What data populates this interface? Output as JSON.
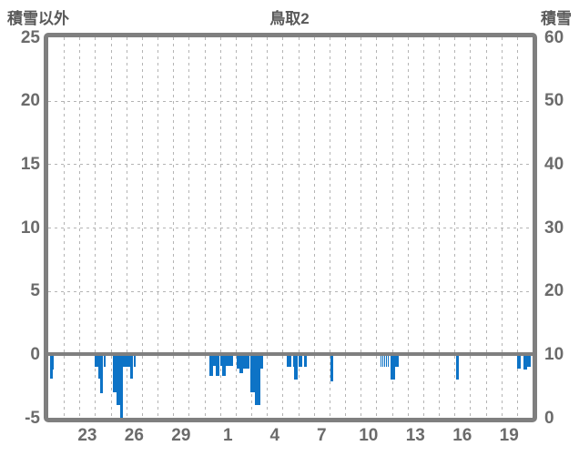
{
  "header": {
    "left_label": "積雪以外",
    "title": "鳥取2",
    "right_label": "積雪"
  },
  "chart_data": {
    "type": "bar",
    "title": "鳥取2",
    "bar_color": "#0d73c6",
    "frame_color": "#7f7f7f",
    "grid_color": "#b4b4b4",
    "label_color": "#6b6b6b",
    "grid": true,
    "left_axis": {
      "label": "積雪以外",
      "min": -5,
      "max": 25,
      "ticks": [
        "25",
        "20",
        "15",
        "10",
        "5",
        "0",
        "-5"
      ],
      "tick_values": [
        25,
        20,
        15,
        10,
        5,
        0,
        -5
      ]
    },
    "right_axis": {
      "label": "積雪",
      "min": 0,
      "max": 60,
      "ticks": [
        "60",
        "50",
        "40",
        "30",
        "20",
        "10",
        "0"
      ],
      "tick_values": [
        60,
        50,
        40,
        30,
        20,
        10,
        0
      ]
    },
    "x_axis": {
      "days_span": 31,
      "tick_labels": [
        {
          "label": "23",
          "day": 2.5
        },
        {
          "label": "26",
          "day": 5.5
        },
        {
          "label": "29",
          "day": 8.5
        },
        {
          "label": "1",
          "day": 11.5
        },
        {
          "label": "4",
          "day": 14.5
        },
        {
          "label": "7",
          "day": 17.5
        },
        {
          "label": "10",
          "day": 20.5
        },
        {
          "label": "13",
          "day": 23.5
        },
        {
          "label": "16",
          "day": 26.5
        },
        {
          "label": "19",
          "day": 29.5
        }
      ]
    },
    "bars": [
      {
        "d": 0.117,
        "w": 0.262,
        "v": -1.2
      },
      {
        "d": 0.117,
        "w": 0.146,
        "v": -1.9
      },
      {
        "d": 3.0,
        "w": 0.204,
        "v": -1.0
      },
      {
        "d": 3.205,
        "w": 0.146,
        "v": -1.9
      },
      {
        "d": 3.35,
        "w": 0.175,
        "v": -3.05
      },
      {
        "d": 3.526,
        "w": 0.117,
        "v": -1.0
      },
      {
        "d": 4.11,
        "w": 0.28,
        "v": -3.0
      },
      {
        "d": 4.39,
        "w": 0.216,
        "v": -4.0
      },
      {
        "d": 4.6,
        "w": 0.192,
        "v": -5.0
      },
      {
        "d": 4.8,
        "w": 0.449,
        "v": -1.0
      },
      {
        "d": 5.24,
        "w": 0.204,
        "v": -1.9
      },
      {
        "d": 5.45,
        "w": 0.146,
        "v": -1.0
      },
      {
        "d": 10.31,
        "w": 0.233,
        "v": -1.7
      },
      {
        "d": 10.55,
        "w": 0.204,
        "v": -0.9
      },
      {
        "d": 10.75,
        "w": 0.233,
        "v": -1.7
      },
      {
        "d": 10.99,
        "w": 0.146,
        "v": -0.9
      },
      {
        "d": 11.13,
        "w": 0.233,
        "v": -1.7
      },
      {
        "d": 11.36,
        "w": 0.495,
        "v": -0.9
      },
      {
        "d": 12.06,
        "w": 0.175,
        "v": -1.1
      },
      {
        "d": 12.24,
        "w": 0.233,
        "v": -1.5
      },
      {
        "d": 12.47,
        "w": 0.437,
        "v": -1.1
      },
      {
        "d": 12.91,
        "w": 0.32,
        "v": -3.0
      },
      {
        "d": 13.23,
        "w": 0.32,
        "v": -4.0
      },
      {
        "d": 13.55,
        "w": 0.175,
        "v": -1.1
      },
      {
        "d": 15.27,
        "w": 0.262,
        "v": -1.0
      },
      {
        "d": 15.65,
        "w": 0.087,
        "v": -1.0
      },
      {
        "d": 15.73,
        "w": 0.262,
        "v": -2.0
      },
      {
        "d": 16.0,
        "w": 0.233,
        "v": -1.0
      },
      {
        "d": 16.35,
        "w": 0.175,
        "v": -1.0
      },
      {
        "d": 18.09,
        "w": 0.175,
        "v": -2.1
      },
      {
        "d": 21.29,
        "w": 0.058,
        "v": -0.95
      },
      {
        "d": 21.41,
        "w": 0.058,
        "v": -0.95
      },
      {
        "d": 21.53,
        "w": 0.058,
        "v": -0.95
      },
      {
        "d": 21.64,
        "w": 0.058,
        "v": -0.95
      },
      {
        "d": 21.76,
        "w": 0.058,
        "v": -0.95
      },
      {
        "d": 21.91,
        "w": 0.32,
        "v": -2.0
      },
      {
        "d": 22.23,
        "w": 0.233,
        "v": -0.95
      },
      {
        "d": 26.09,
        "w": 0.192,
        "v": -2.0
      },
      {
        "d": 30.01,
        "w": 0.216,
        "v": -1.1
      },
      {
        "d": 30.42,
        "w": 0.233,
        "v": -1.2
      },
      {
        "d": 30.65,
        "w": 0.262,
        "v": -1.0
      }
    ]
  }
}
